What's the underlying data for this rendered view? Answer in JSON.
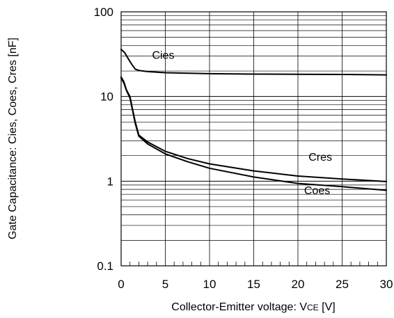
{
  "chart_data": {
    "type": "line",
    "title": "",
    "xlabel": {
      "main": "Collector-Emitter voltage: V",
      "sub": "CE",
      "unit": " [V]"
    },
    "ylabel": "Gate Capacitance: Cies, Coes, Cres [nF]",
    "xlim": [
      0,
      30
    ],
    "ylim": [
      0.1,
      100
    ],
    "yscale": "log",
    "grid": true,
    "x_ticks": [
      0,
      5,
      10,
      15,
      20,
      25,
      30
    ],
    "y_ticks": [
      {
        "value": 0.1,
        "label": "0.1"
      },
      {
        "value": 1,
        "label": "1"
      },
      {
        "value": 10,
        "label": "10"
      },
      {
        "value": 100,
        "label": "100"
      }
    ],
    "series": [
      {
        "name": "Cies",
        "label_at": [
          3.5,
          28
        ],
        "points": [
          [
            0,
            36
          ],
          [
            0.4,
            33
          ],
          [
            0.8,
            28
          ],
          [
            1.2,
            24
          ],
          [
            1.6,
            21
          ],
          [
            2,
            20.3
          ],
          [
            3,
            19.7
          ],
          [
            5,
            19.1
          ],
          [
            10,
            18.6
          ],
          [
            15,
            18.4
          ],
          [
            20,
            18.3
          ],
          [
            25,
            18.2
          ],
          [
            30,
            18
          ]
        ]
      },
      {
        "name": "Cres",
        "label_at": [
          21.2,
          1.75
        ],
        "points": [
          [
            0,
            17
          ],
          [
            0.3,
            15
          ],
          [
            0.6,
            12
          ],
          [
            1,
            10
          ],
          [
            1.3,
            7
          ],
          [
            1.6,
            5
          ],
          [
            2,
            3.5
          ],
          [
            3,
            2.9
          ],
          [
            5,
            2.25
          ],
          [
            7.5,
            1.85
          ],
          [
            10,
            1.6
          ],
          [
            15,
            1.32
          ],
          [
            20,
            1.15
          ],
          [
            25,
            1.06
          ],
          [
            30,
            0.99
          ]
        ]
      },
      {
        "name": "Coes",
        "label_at": [
          20.7,
          0.7
        ],
        "points": [
          [
            0,
            16.5
          ],
          [
            0.3,
            14.5
          ],
          [
            0.6,
            11.8
          ],
          [
            1,
            9.6
          ],
          [
            1.3,
            6.8
          ],
          [
            1.6,
            4.8
          ],
          [
            2,
            3.4
          ],
          [
            3,
            2.75
          ],
          [
            5,
            2.1
          ],
          [
            7.5,
            1.7
          ],
          [
            10,
            1.42
          ],
          [
            15,
            1.12
          ],
          [
            20,
            0.94
          ],
          [
            25,
            0.86
          ],
          [
            30,
            0.78
          ]
        ]
      }
    ]
  }
}
